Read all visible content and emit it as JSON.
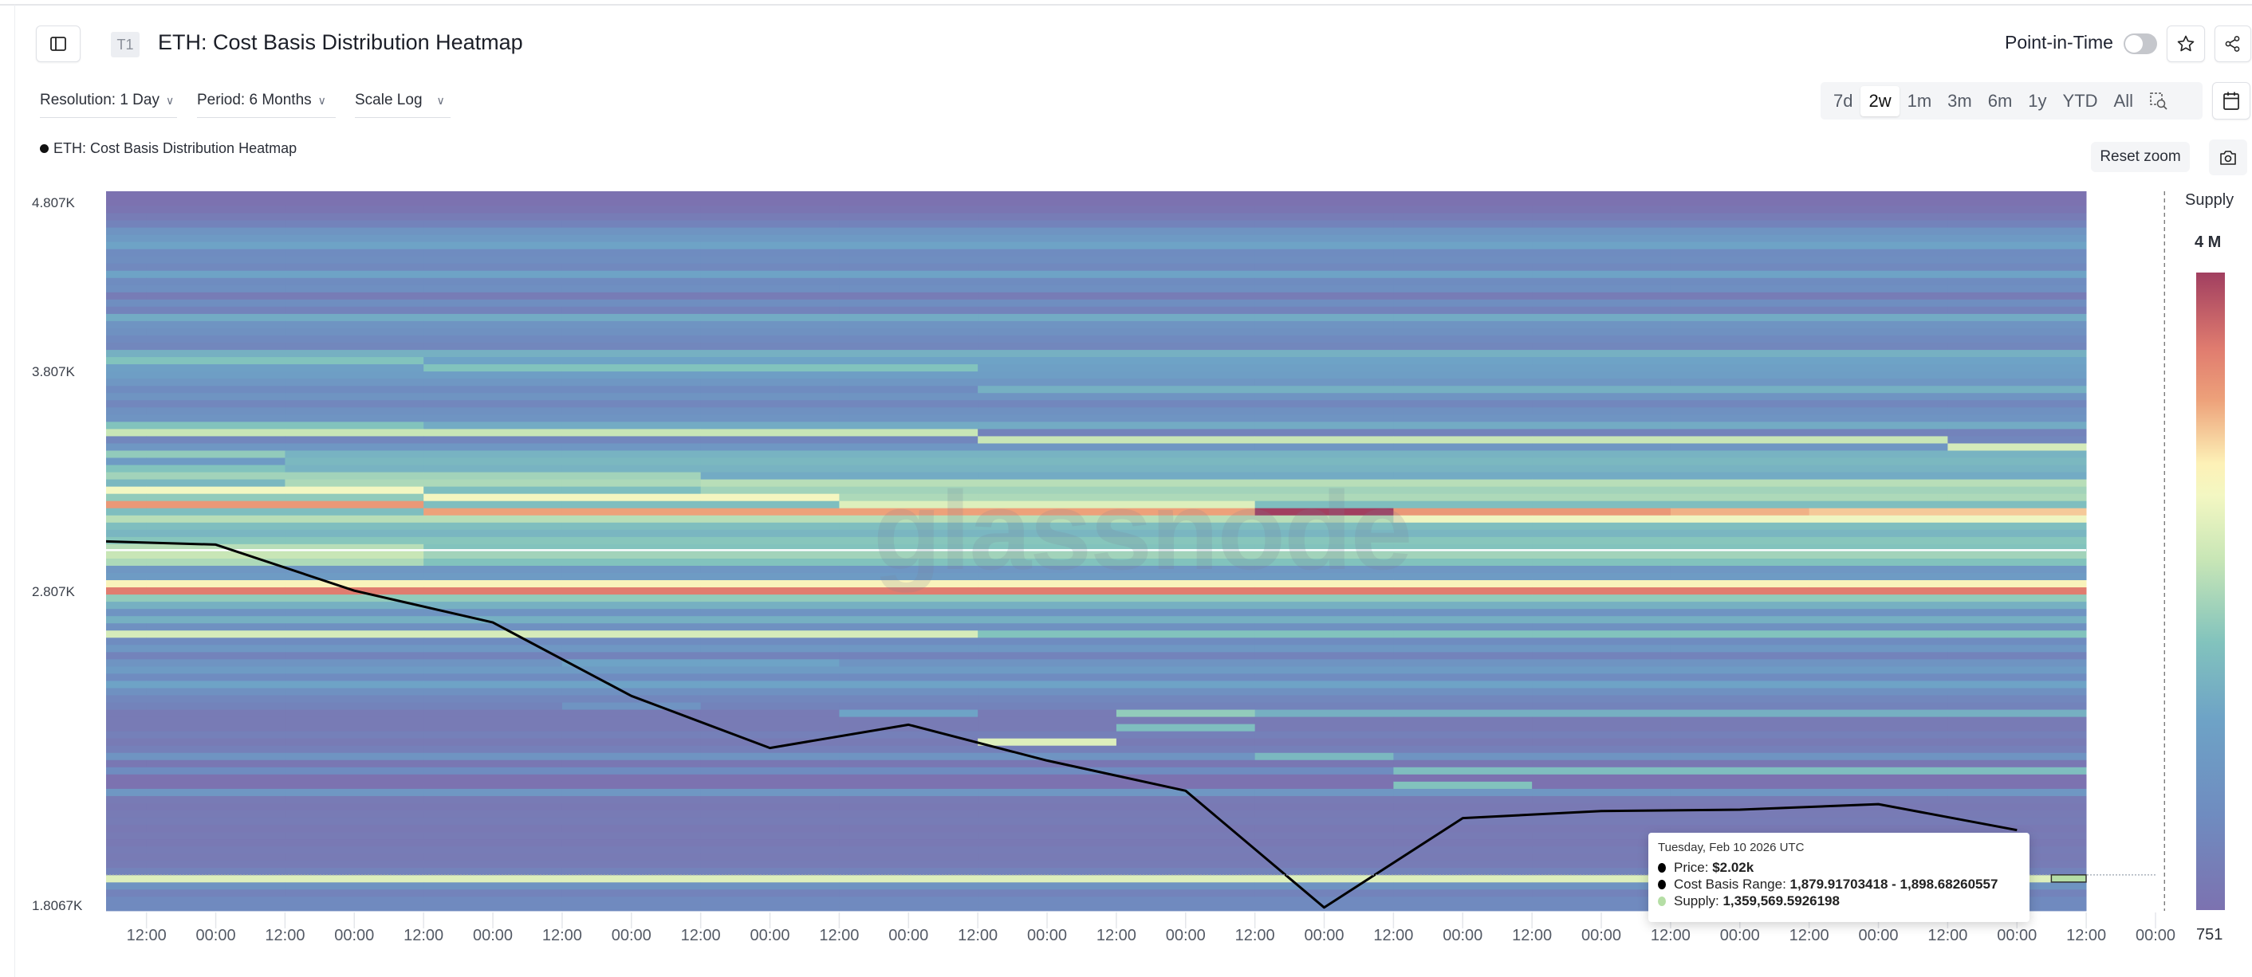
{
  "header": {
    "badge": "T1",
    "title": "ETH: Cost Basis Distribution Heatmap",
    "point_in_time_label": "Point-in-Time",
    "point_in_time_on": false,
    "icons": {
      "sidebar": "sidebar-toggle-icon",
      "star": "star-icon",
      "share": "share-icon",
      "calendar": "calendar-icon",
      "camera": "camera-icon",
      "zoom-select": "zoom-select-icon"
    }
  },
  "controls": {
    "resolution": "Resolution: 1 Day",
    "period": "Period: 6 Months",
    "scale": "Scale Log"
  },
  "time_ranges": [
    {
      "label": "7d",
      "selected": false
    },
    {
      "label": "2w",
      "selected": true
    },
    {
      "label": "1m",
      "selected": false
    },
    {
      "label": "3m",
      "selected": false
    },
    {
      "label": "6m",
      "selected": false
    },
    {
      "label": "1y",
      "selected": false
    },
    {
      "label": "YTD",
      "selected": false
    },
    {
      "label": "All",
      "selected": false
    }
  ],
  "reset_zoom": "Reset zoom",
  "legend_label": "ETH: Cost Basis Distribution Heatmap",
  "watermark": "glassnode",
  "tooltip": {
    "date": "Tuesday, Feb 10 2026 UTC",
    "price_label": "Price: ",
    "price_value": "$2.02k",
    "range_label": "Cost Basis Range: ",
    "range_value": "1,879.91703418 - 1,898.68260557",
    "supply_label": "Supply: ",
    "supply_value": "1,359,569.5926198",
    "supply_color": "#b5dea5"
  },
  "chart_data": {
    "type": "heatmap",
    "title": "ETH: Cost Basis Distribution Heatmap",
    "y_scale": "log",
    "y_ticks": [
      4807,
      3807,
      2807,
      1806.7
    ],
    "y_tick_labels": [
      "4.807K",
      "3.807K",
      "2.807K",
      "1.8067K"
    ],
    "bin_base_price": 1806.7,
    "bin_ratio": 1.01,
    "bin_count": 100,
    "xlim": [
      "2026-01-27T05:00",
      "2026-02-11T00:00"
    ],
    "x_tick_labels": [
      "12:00",
      "00:00",
      "12:00",
      "00:00",
      "12:00",
      "00:00",
      "12:00",
      "00:00",
      "12:00",
      "00:00",
      "12:00",
      "00:00",
      "12:00",
      "00:00",
      "12:00",
      "00:00",
      "12:00",
      "00:00",
      "12:00",
      "00:00",
      "12:00",
      "00:00",
      "12:00",
      "00:00",
      "12:00",
      "00:00",
      "12:00",
      "00:00",
      "12:00",
      "00:00"
    ],
    "dates": [
      "2026-01-27",
      "2026-01-28",
      "2026-01-29",
      "2026-01-30",
      "2026-01-31",
      "2026-02-01",
      "2026-02-02",
      "2026-02-03",
      "2026-02-04",
      "2026-02-05",
      "2026-02-06",
      "2026-02-07",
      "2026-02-08",
      "2026-02-09",
      "2026-02-10"
    ],
    "price": [
      3015,
      2998,
      2813,
      2692,
      2432,
      2263,
      2337,
      2224,
      2133,
      1815,
      2054,
      2074,
      2078,
      2094,
      2020
    ],
    "colorbar": {
      "label": "Supply",
      "max_label": "4 M",
      "min_label": "751",
      "min": 751,
      "max": 4000000,
      "colors": [
        "#7c72b0",
        "#6f8cc0",
        "#6ea3c6",
        "#82c3bd",
        "#c8e6b6",
        "#f3f7c2",
        "#fdf1b7",
        "#eda17a",
        "#e07c6f",
        "#a13f60"
      ]
    },
    "relative_supply_by_bin": [
      0.14,
      0.14,
      0.1,
      0.2,
      0.6,
      0.1,
      0.06,
      0.05,
      0.06,
      0.04,
      0.05,
      0.04,
      0.06,
      0.05,
      0.04,
      0.05,
      0.22,
      0.0,
      0.0,
      0.15,
      0.03,
      0.2,
      0.08,
      0.05,
      0.08,
      0.05,
      0.05,
      0.05,
      0.1,
      0.12,
      0.18,
      0.3,
      0.15,
      0.25,
      0.2,
      0.1,
      0.22,
      0.15,
      0.58,
      0.18,
      0.35,
      0.2,
      0.35,
      0.45,
      0.88,
      0.68,
      0.25,
      0.22,
      0.42,
      0.48,
      0.42,
      0.43,
      0.37,
      0.4,
      0.52,
      0.4,
      0.4,
      0.5,
      0.48,
      0.52,
      0.33,
      0.36,
      0.38,
      0.36,
      0.22,
      0.12,
      0.1,
      0.33,
      0.2,
      0.18,
      0.12,
      0.2,
      0.15,
      0.22,
      0.27,
      0.28,
      0.3,
      0.35,
      0.12,
      0.14,
      0.18,
      0.2,
      0.33,
      0.1,
      0.16,
      0.06,
      0.17,
      0.15,
      0.3,
      0.13,
      0.16,
      0.15,
      0.3,
      0.24,
      0.2,
      0.1,
      0.06,
      0.02,
      0.0,
      0.0
    ],
    "relative_supply_overrides": [
      [
        76,
        0,
        2,
        0.42
      ],
      [
        75,
        3,
        6,
        0.42
      ],
      [
        72,
        7,
        14,
        0.35
      ],
      [
        67,
        0,
        2,
        0.42
      ],
      [
        66,
        0,
        6,
        0.55
      ],
      [
        65,
        7,
        13,
        0.55
      ],
      [
        64,
        14,
        14,
        0.58
      ],
      [
        63,
        0,
        1,
        0.45
      ],
      [
        62,
        0,
        1,
        0.25
      ],
      [
        61,
        0,
        1,
        0.42
      ],
      [
        60,
        0,
        4,
        0.48
      ],
      [
        59,
        0,
        1,
        0.38
      ],
      [
        59,
        2,
        4,
        0.5
      ],
      [
        58,
        0,
        2,
        0.65
      ],
      [
        58,
        3,
        4,
        0.4
      ],
      [
        57,
        0,
        2,
        0.45
      ],
      [
        57,
        3,
        5,
        0.66
      ],
      [
        56,
        0,
        2,
        0.82
      ],
      [
        56,
        6,
        8,
        0.6
      ],
      [
        55,
        0,
        2,
        0.4
      ],
      [
        55,
        3,
        8,
        0.8
      ],
      [
        55,
        9,
        9,
        1.0
      ],
      [
        55,
        10,
        11,
        0.82
      ],
      [
        55,
        12,
        12,
        0.78
      ],
      [
        55,
        13,
        14,
        0.75
      ],
      [
        54,
        10,
        14,
        0.64
      ],
      [
        50,
        0,
        2,
        0.52
      ],
      [
        49,
        0,
        2,
        0.55
      ],
      [
        48,
        0,
        2,
        0.5
      ],
      [
        38,
        7,
        14,
        0.42
      ],
      [
        34,
        4,
        5,
        0.3
      ],
      [
        28,
        4,
        4,
        0.2
      ],
      [
        27,
        6,
        6,
        0.3
      ],
      [
        27,
        8,
        8,
        0.45
      ],
      [
        27,
        9,
        14,
        0.35
      ],
      [
        25,
        8,
        8,
        0.4
      ],
      [
        23,
        7,
        7,
        0.6
      ],
      [
        21,
        9,
        9,
        0.38
      ],
      [
        19,
        10,
        14,
        0.4
      ],
      [
        17,
        10,
        10,
        0.42
      ]
    ],
    "reference_line_price": 2975,
    "hover": {
      "date": "2026-02-10",
      "bin": 4
    }
  }
}
